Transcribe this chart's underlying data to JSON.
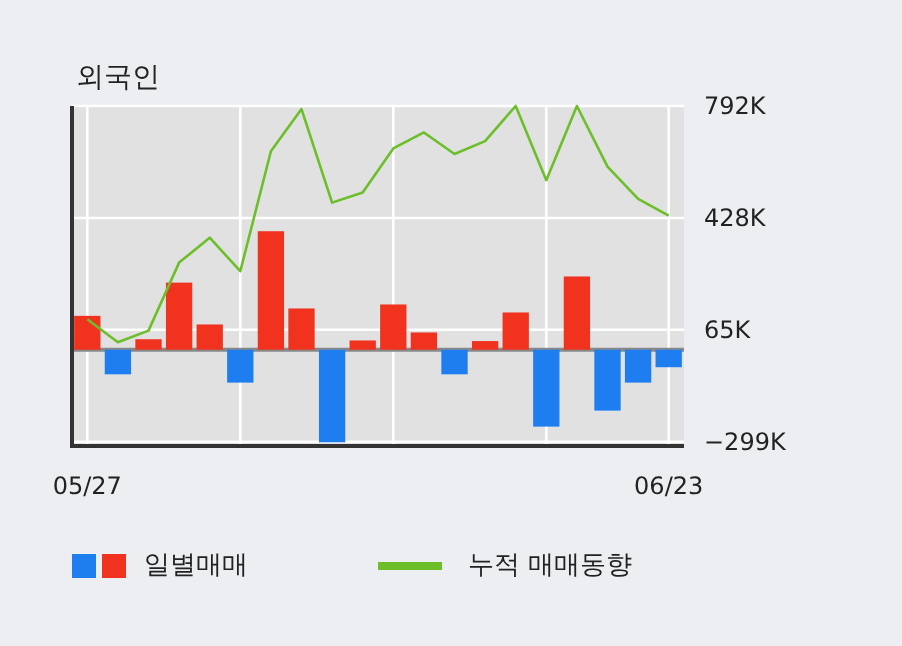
{
  "chart_data": {
    "type": "bar",
    "title": "외국인",
    "categories": [
      "05/27",
      null,
      null,
      null,
      null,
      null,
      null,
      null,
      null,
      null,
      null,
      null,
      null,
      null,
      null,
      null,
      null,
      null,
      null,
      "06/23"
    ],
    "series": [
      {
        "name": "일별매매",
        "colors": [
          "#f0321e",
          "#1e7ef0",
          "#f0321e",
          "#f0321e",
          "#f0321e",
          "#1e7ef0",
          "#f0321e",
          "#f0321e",
          "#1e7ef0",
          "#f0321e",
          "#f0321e",
          "#f0321e",
          "#1e7ef0",
          "#f0321e",
          "#f0321e",
          "#1e7ef0",
          "#f0321e",
          "#1e7ef0",
          "#1e7ef0",
          "#1e7ef0"
        ],
        "values": [
          110000,
          -80000,
          34000,
          218000,
          82000,
          -107000,
          385000,
          134000,
          -301000,
          30000,
          147000,
          56000,
          -80000,
          28000,
          121000,
          -250000,
          238000,
          -198000,
          -107000,
          -57000
        ]
      },
      {
        "name": "누적 매매동향",
        "type": "line",
        "color": "#6cbf2a",
        "values": [
          99000,
          24000,
          62000,
          283000,
          364000,
          255000,
          645000,
          782000,
          478000,
          511000,
          654000,
          706000,
          636000,
          678000,
          792000,
          551000,
          792000,
          595000,
          490000,
          436000
        ]
      }
    ],
    "ylim": [
      -313000,
      792000
    ],
    "yticks": [
      {
        "value": -299000,
        "label": "−299K"
      },
      {
        "value": 65000,
        "label": "65K"
      },
      {
        "value": 428000,
        "label": "428K"
      },
      {
        "value": 792000,
        "label": "792K"
      }
    ],
    "ref_lines": [
      {
        "axis": "y",
        "value": 0,
        "color": "#888888"
      }
    ],
    "grid": true,
    "legend": "bottom"
  }
}
